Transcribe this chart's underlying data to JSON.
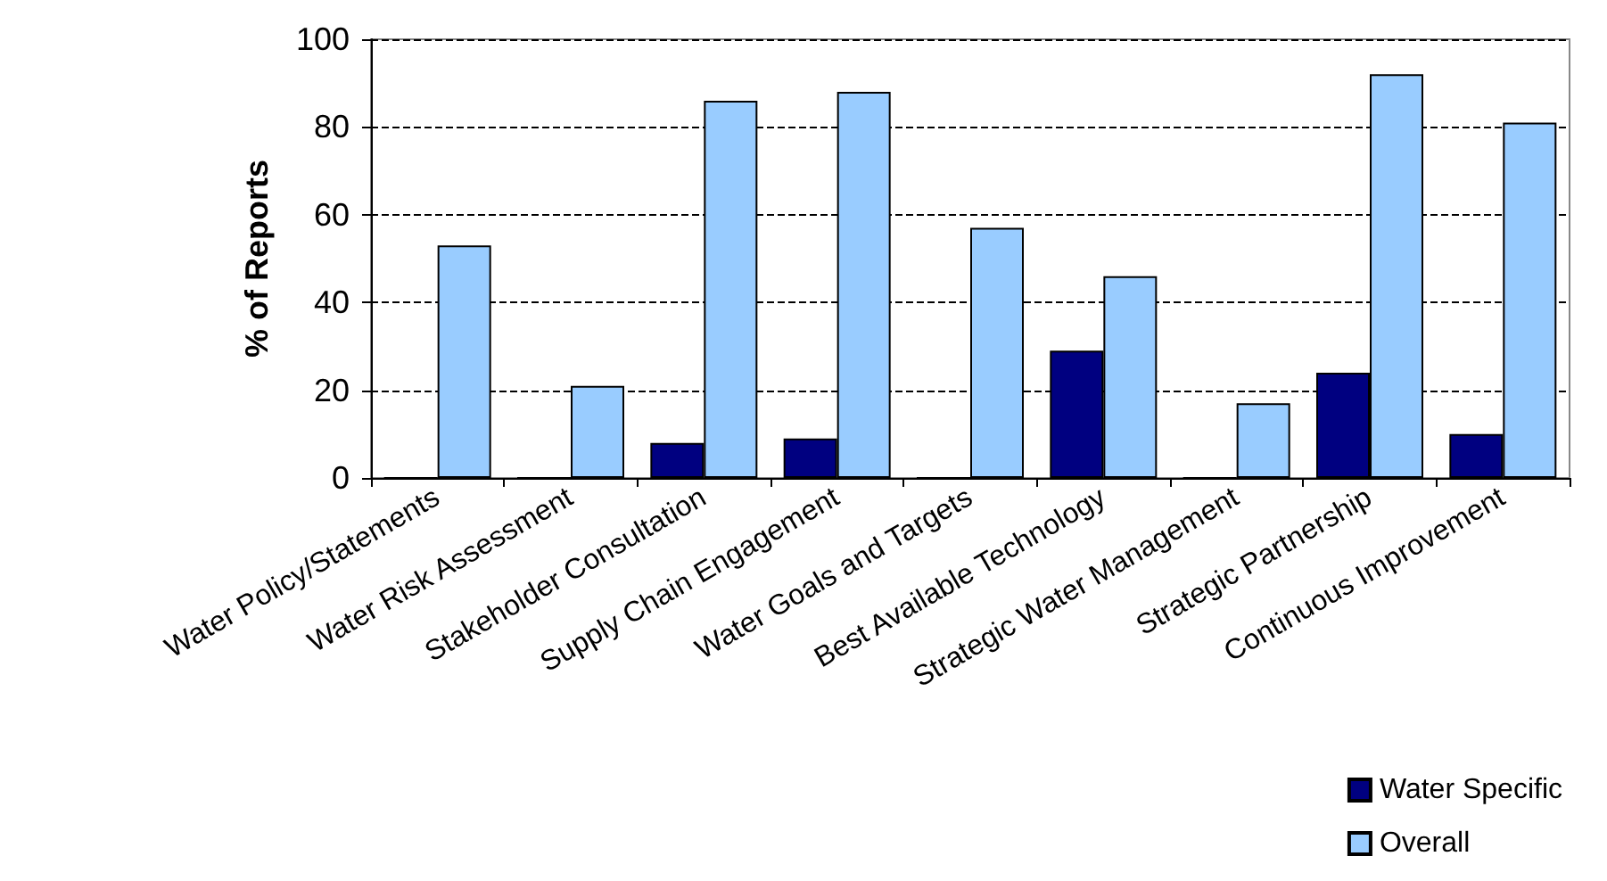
{
  "chart_data": {
    "type": "bar",
    "ylabel": "% of Reports",
    "categories": [
      "Water Policy/Statements",
      "Water Risk Assessment",
      "Stakeholder Consultation",
      "Supply Chain Engagement",
      "Water Goals and Targets",
      "Best Available Technology",
      "Strategic Water Management",
      "Strategic Partnership",
      "Continuous Improvement"
    ],
    "series": [
      {
        "name": "Water Specific",
        "color": "#000080",
        "values": [
          0,
          0,
          8,
          9,
          0,
          29,
          0,
          24,
          10
        ]
      },
      {
        "name": "Overall",
        "color": "#99ccff",
        "values": [
          53,
          21,
          86,
          88,
          57,
          46,
          17,
          92,
          81
        ]
      }
    ],
    "ylim": [
      0,
      100
    ],
    "yticks": [
      0,
      20,
      40,
      60,
      80,
      100
    ],
    "grid": "y",
    "line_style": "dashed",
    "legend": "bottom right"
  }
}
